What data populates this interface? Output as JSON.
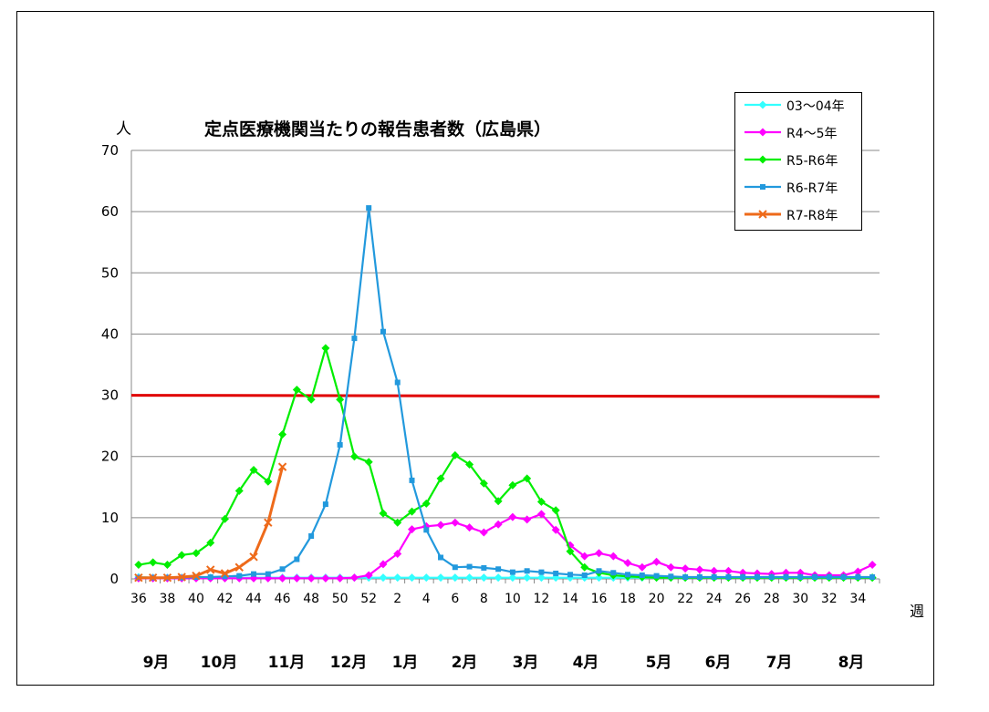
{
  "chart_data": {
    "type": "line",
    "title": "定点医療機関当たりの報告患者数（広島県）",
    "ylabel": "人",
    "xlabel": "週",
    "ylim": [
      0,
      70
    ],
    "yticks": [
      0,
      10,
      20,
      30,
      40,
      50,
      60,
      70
    ],
    "grid": true,
    "legend_position": "top-right",
    "weeks": [
      36,
      37,
      38,
      39,
      40,
      41,
      42,
      43,
      44,
      45,
      46,
      47,
      48,
      49,
      50,
      51,
      52,
      1,
      2,
      3,
      4,
      5,
      6,
      7,
      8,
      9,
      10,
      11,
      12,
      13,
      14,
      15,
      16,
      17,
      18,
      19,
      20,
      21,
      22,
      23,
      24,
      25,
      26,
      27,
      28,
      29,
      30,
      31,
      32,
      33,
      34,
      35
    ],
    "tick_labels": [
      "36",
      "38",
      "40",
      "42",
      "44",
      "46",
      "48",
      "50",
      "52",
      "2",
      "4",
      "6",
      "8",
      "10",
      "12",
      "14",
      "16",
      "18",
      "20",
      "22",
      "24",
      "26",
      "28",
      "30",
      "32",
      "34"
    ],
    "months": [
      "9月",
      "10月",
      "11月",
      "12月",
      "1月",
      "2月",
      "3月",
      "4月",
      "5月",
      "6月",
      "7月",
      "8月"
    ],
    "reference_line": {
      "value": 30,
      "color": "#e00000"
    },
    "series": [
      {
        "name": "03～04年",
        "color": "#33ffff",
        "marker": "diamond",
        "values": [
          0.3,
          0.2,
          0.2,
          0.2,
          0.2,
          0.2,
          0.2,
          0.2,
          0.2,
          0.2,
          0.2,
          0.2,
          0.2,
          0.2,
          0.2,
          0.2,
          0.2,
          0.2,
          0.2,
          0.2,
          0.2,
          0.2,
          0.2,
          0.2,
          0.2,
          0.2,
          0.2,
          0.2,
          0.2,
          0.2,
          0.2,
          0.2,
          0.2,
          0.2,
          0.2,
          0.2,
          0.2,
          0.2,
          0.2,
          0.2,
          0.2,
          0.2,
          0.2,
          0.2,
          0.2,
          0.2,
          0.2,
          0.2,
          0.2,
          0.2,
          0.2,
          0.2
        ]
      },
      {
        "name": "R4～5年",
        "color": "#ff00ff",
        "marker": "diamond",
        "values": [
          0.1,
          0.1,
          0.1,
          0.1,
          0.1,
          0.1,
          0.1,
          0.1,
          0.1,
          0.1,
          0.1,
          0.1,
          0.1,
          0.1,
          0.1,
          0.2,
          0.6,
          2.4,
          4.1,
          8.1,
          8.6,
          8.8,
          9.2,
          8.4,
          7.6,
          8.9,
          10.1,
          9.7,
          10.6,
          8.0,
          5.5,
          3.7,
          4.2,
          3.7,
          2.6,
          1.9,
          2.8,
          1.9,
          1.7,
          1.5,
          1.3,
          1.3,
          1.0,
          0.9,
          0.8,
          1.0,
          1.0,
          0.6,
          0.6,
          0.6,
          1.2,
          2.3
        ]
      },
      {
        "name": "R5-R6年",
        "color": "#00ee00",
        "marker": "diamond",
        "values": [
          2.3,
          2.7,
          2.3,
          3.9,
          4.2,
          5.9,
          9.8,
          14.4,
          17.8,
          15.9,
          23.6,
          30.9,
          29.3,
          37.7,
          29.3,
          20.0,
          19.1,
          10.7,
          9.2,
          11.0,
          12.3,
          16.4,
          20.2,
          18.7,
          15.6,
          12.7,
          15.3,
          16.4,
          12.6,
          11.2,
          4.5,
          1.9,
          1.0,
          0.6,
          0.4,
          0.3,
          0.2,
          0.2,
          0.2,
          0.2,
          0.2,
          0.2,
          0.2,
          0.2,
          0.2,
          0.2,
          0.2,
          0.2,
          0.2,
          0.2,
          0.2,
          0.2
        ]
      },
      {
        "name": "R6-R7年",
        "color": "#2299dd",
        "marker": "square",
        "values": [
          0.2,
          0.2,
          0.2,
          0.2,
          0.3,
          0.3,
          0.4,
          0.5,
          0.8,
          0.8,
          1.6,
          3.2,
          7.0,
          12.2,
          21.9,
          39.3,
          60.6,
          40.4,
          32.1,
          16.1,
          8.0,
          3.5,
          1.9,
          2.0,
          1.8,
          1.6,
          1.1,
          1.3,
          1.1,
          0.9,
          0.7,
          0.6,
          1.3,
          1.0,
          0.7,
          0.6,
          0.5,
          0.4,
          0.3,
          0.3,
          0.3,
          0.3,
          0.3,
          0.3,
          0.3,
          0.3,
          0.3,
          0.3,
          0.3,
          0.3,
          0.3,
          0.3
        ]
      },
      {
        "name": "R7-R8年",
        "color": "#ee6a1a",
        "marker": "x",
        "values": [
          0.2,
          0.2,
          0.2,
          0.3,
          0.5,
          1.5,
          0.9,
          1.9,
          3.6,
          9.2,
          18.3
        ]
      }
    ]
  }
}
